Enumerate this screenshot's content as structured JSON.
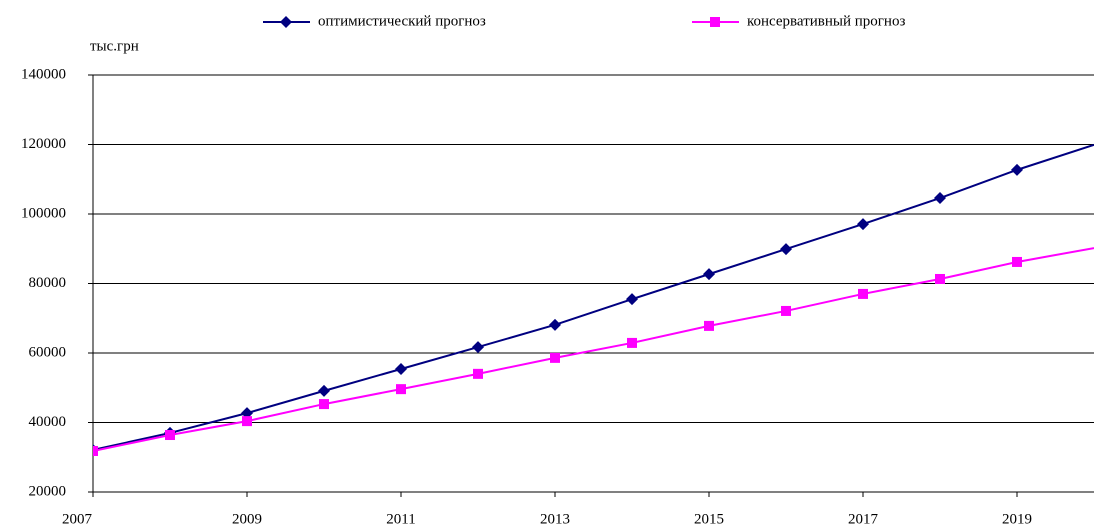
{
  "chart_data": {
    "type": "line",
    "ylabel": "тыс.грн",
    "x": [
      2007,
      2008,
      2009,
      2010,
      2011,
      2012,
      2013,
      2014,
      2015,
      2016,
      2017,
      2018,
      2019,
      2020
    ],
    "series": [
      {
        "name": "оптимистический прогноз",
        "color": "#000080",
        "marker": "diamond",
        "values": [
          32100,
          37000,
          42700,
          49100,
          55400,
          61700,
          68100,
          75500,
          82700,
          89900,
          97100,
          104600,
          112700,
          119900
        ]
      },
      {
        "name": "консервативный прогноз",
        "color": "#ff00ff",
        "marker": "square",
        "values": [
          31800,
          36400,
          40400,
          45300,
          49600,
          54000,
          58600,
          62900,
          67800,
          72100,
          77000,
          81300,
          86200,
          90200
        ]
      }
    ],
    "xlim": [
      2007,
      2020
    ],
    "xticks": [
      2007,
      2009,
      2011,
      2013,
      2015,
      2017,
      2019
    ],
    "ylim": [
      20000,
      140000
    ],
    "yticks": [
      20000,
      40000,
      60000,
      80000,
      100000,
      120000,
      140000
    ],
    "grid": true,
    "legend": "top"
  }
}
